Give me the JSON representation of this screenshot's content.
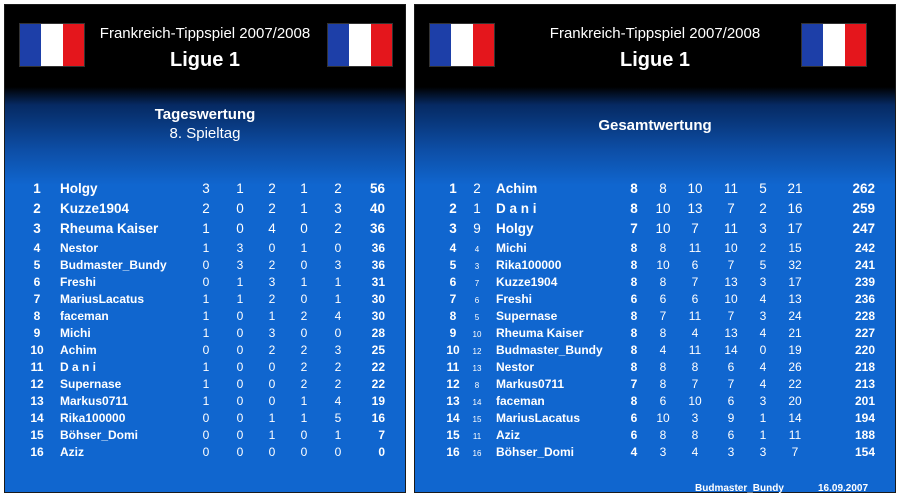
{
  "left": {
    "title": "Frankreich-Tippspiel 2007/2008",
    "league": "Ligue 1",
    "subtitle": "Tageswertung",
    "matchday": "8. Spieltag",
    "rows": [
      {
        "rank": "1",
        "name": "Holgy",
        "g": [
          "3",
          "1",
          "2",
          "1",
          "2"
        ],
        "total": "56"
      },
      {
        "rank": "2",
        "name": "Kuzze1904",
        "g": [
          "2",
          "0",
          "2",
          "1",
          "3"
        ],
        "total": "40"
      },
      {
        "rank": "3",
        "name": "Rheuma Kaiser",
        "g": [
          "1",
          "0",
          "4",
          "0",
          "2"
        ],
        "total": "36"
      },
      {
        "rank": "4",
        "name": "Nestor",
        "g": [
          "1",
          "3",
          "0",
          "1",
          "0"
        ],
        "total": "36"
      },
      {
        "rank": "5",
        "name": "Budmaster_Bundy",
        "g": [
          "0",
          "3",
          "2",
          "0",
          "3"
        ],
        "total": "36"
      },
      {
        "rank": "6",
        "name": "Freshi",
        "g": [
          "0",
          "1",
          "3",
          "1",
          "1"
        ],
        "total": "31"
      },
      {
        "rank": "7",
        "name": "MariusLacatus",
        "g": [
          "1",
          "1",
          "2",
          "0",
          "1"
        ],
        "total": "30"
      },
      {
        "rank": "8",
        "name": "faceman",
        "g": [
          "1",
          "0",
          "1",
          "2",
          "4"
        ],
        "total": "30"
      },
      {
        "rank": "9",
        "name": "Michi",
        "g": [
          "1",
          "0",
          "3",
          "0",
          "0"
        ],
        "total": "28"
      },
      {
        "rank": "10",
        "name": "Achim",
        "g": [
          "0",
          "0",
          "2",
          "2",
          "3"
        ],
        "total": "25"
      },
      {
        "rank": "11",
        "name": "D a n i",
        "g": [
          "1",
          "0",
          "0",
          "2",
          "2"
        ],
        "total": "22"
      },
      {
        "rank": "12",
        "name": "Supernase",
        "g": [
          "1",
          "0",
          "0",
          "2",
          "2"
        ],
        "total": "22"
      },
      {
        "rank": "13",
        "name": "Markus0711",
        "g": [
          "1",
          "0",
          "0",
          "1",
          "4"
        ],
        "total": "19"
      },
      {
        "rank": "14",
        "name": "Rika100000",
        "g": [
          "0",
          "0",
          "1",
          "1",
          "5"
        ],
        "total": "16"
      },
      {
        "rank": "15",
        "name": "Böhser_Domi",
        "g": [
          "0",
          "0",
          "1",
          "0",
          "1"
        ],
        "total": "7"
      },
      {
        "rank": "16",
        "name": "Aziz",
        "g": [
          "0",
          "0",
          "0",
          "0",
          "0"
        ],
        "total": "0"
      }
    ]
  },
  "right": {
    "title": "Frankreich-Tippspiel 2007/2008",
    "league": "Ligue 1",
    "subtitle": "Gesamtwertung",
    "footer_name": "Budmaster_Bundy",
    "footer_date": "16.09.2007",
    "rows": [
      {
        "rank": "1",
        "prev": "2",
        "name": "Achim",
        "md": "8",
        "g": [
          "8",
          "10",
          "11",
          "5",
          "21"
        ],
        "total": "262"
      },
      {
        "rank": "2",
        "prev": "1",
        "name": "D a n i",
        "md": "8",
        "g": [
          "10",
          "13",
          "7",
          "2",
          "16"
        ],
        "total": "259"
      },
      {
        "rank": "3",
        "prev": "9",
        "name": "Holgy",
        "md": "7",
        "g": [
          "10",
          "7",
          "11",
          "3",
          "17"
        ],
        "total": "247"
      },
      {
        "rank": "4",
        "prev": "4",
        "name": "Michi",
        "md": "8",
        "g": [
          "8",
          "11",
          "10",
          "2",
          "15"
        ],
        "total": "242"
      },
      {
        "rank": "5",
        "prev": "3",
        "name": "Rika100000",
        "md": "8",
        "g": [
          "10",
          "6",
          "7",
          "5",
          "32"
        ],
        "total": "241"
      },
      {
        "rank": "6",
        "prev": "7",
        "name": "Kuzze1904",
        "md": "8",
        "g": [
          "8",
          "7",
          "13",
          "3",
          "17"
        ],
        "total": "239"
      },
      {
        "rank": "7",
        "prev": "6",
        "name": "Freshi",
        "md": "6",
        "g": [
          "6",
          "6",
          "10",
          "4",
          "13"
        ],
        "total": "236"
      },
      {
        "rank": "8",
        "prev": "5",
        "name": "Supernase",
        "md": "8",
        "g": [
          "7",
          "11",
          "7",
          "3",
          "24"
        ],
        "total": "228"
      },
      {
        "rank": "9",
        "prev": "10",
        "name": "Rheuma Kaiser",
        "md": "8",
        "g": [
          "8",
          "4",
          "13",
          "4",
          "21"
        ],
        "total": "227"
      },
      {
        "rank": "10",
        "prev": "12",
        "name": "Budmaster_Bundy",
        "md": "8",
        "g": [
          "4",
          "11",
          "14",
          "0",
          "19"
        ],
        "total": "220"
      },
      {
        "rank": "11",
        "prev": "13",
        "name": "Nestor",
        "md": "8",
        "g": [
          "8",
          "8",
          "6",
          "4",
          "26"
        ],
        "total": "218"
      },
      {
        "rank": "12",
        "prev": "8",
        "name": "Markus0711",
        "md": "7",
        "g": [
          "8",
          "7",
          "7",
          "4",
          "22"
        ],
        "total": "213"
      },
      {
        "rank": "13",
        "prev": "14",
        "name": "faceman",
        "md": "8",
        "g": [
          "6",
          "10",
          "6",
          "3",
          "20"
        ],
        "total": "201"
      },
      {
        "rank": "14",
        "prev": "15",
        "name": "MariusLacatus",
        "md": "6",
        "g": [
          "10",
          "3",
          "9",
          "1",
          "14"
        ],
        "total": "194"
      },
      {
        "rank": "15",
        "prev": "11",
        "name": "Aziz",
        "md": "6",
        "g": [
          "8",
          "8",
          "6",
          "1",
          "11"
        ],
        "total": "188"
      },
      {
        "rank": "16",
        "prev": "16",
        "name": "Böhser_Domi",
        "md": "4",
        "g": [
          "3",
          "4",
          "3",
          "3",
          "7"
        ],
        "total": "154"
      }
    ]
  }
}
